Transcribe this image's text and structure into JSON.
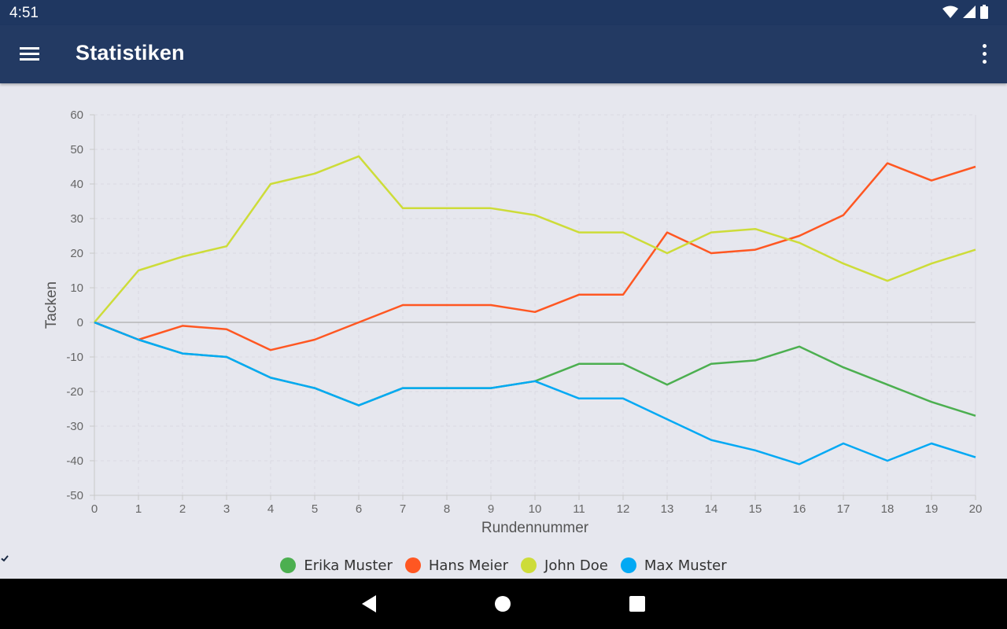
{
  "status_bar": {
    "time": "4:51"
  },
  "app_bar": {
    "title": "Statistiken",
    "menu_icon": "hamburger-menu-icon",
    "overflow_icon": "more-vert-icon"
  },
  "chart_data": {
    "type": "line",
    "xlabel": "Rundennummer",
    "ylabel": "Tacken",
    "x": [
      0,
      1,
      2,
      3,
      4,
      5,
      6,
      7,
      8,
      9,
      10,
      11,
      12,
      13,
      14,
      15,
      16,
      17,
      18,
      19,
      20
    ],
    "xlim": [
      0,
      20
    ],
    "ylim": [
      -50,
      60
    ],
    "yticks": [
      60,
      50,
      40,
      30,
      20,
      10,
      0,
      -10,
      -20,
      -30,
      -40,
      -50
    ],
    "grid": true,
    "legend_position": "bottom",
    "series": [
      {
        "name": "Erika Muster",
        "color": "#4caf50",
        "values": [
          0,
          -5,
          -9,
          -10,
          -16,
          -19,
          -24,
          -19,
          -19,
          -19,
          -17,
          -12,
          -12,
          -18,
          -12,
          -11,
          -7,
          -13,
          -18,
          -23,
          -27
        ]
      },
      {
        "name": "Hans Meier",
        "color": "#ff5722",
        "values": [
          0,
          -5,
          -1,
          -2,
          -8,
          -5,
          0,
          5,
          5,
          5,
          3,
          8,
          8,
          26,
          20,
          21,
          25,
          31,
          46,
          41,
          45
        ]
      },
      {
        "name": "John Doe",
        "color": "#cddc39",
        "values": [
          0,
          15,
          19,
          22,
          40,
          43,
          48,
          33,
          33,
          33,
          31,
          26,
          26,
          20,
          26,
          27,
          23,
          17,
          12,
          17,
          21
        ]
      },
      {
        "name": "Max Muster",
        "color": "#03a9f4",
        "values": [
          0,
          -5,
          -9,
          -10,
          -16,
          -19,
          -24,
          -19,
          -19,
          -19,
          -17,
          -22,
          -22,
          -28,
          -34,
          -37,
          -41,
          -35,
          -40,
          -35,
          -39
        ]
      }
    ]
  },
  "nav_bar": {
    "back_icon": "back-triangle-icon",
    "home_icon": "home-circle-icon",
    "recents_icon": "recents-square-icon"
  }
}
